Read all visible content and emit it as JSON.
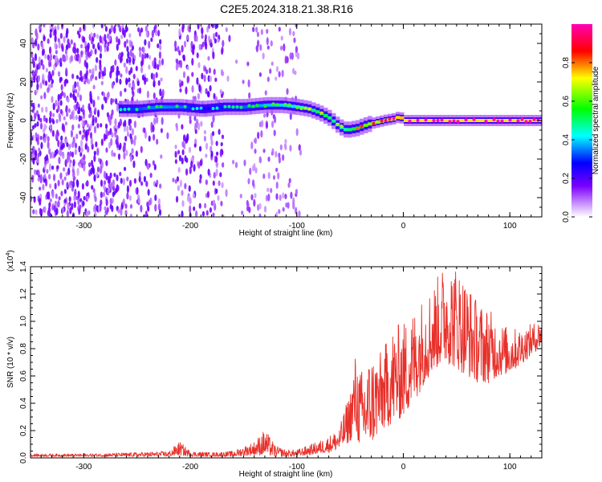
{
  "title": "C2E5.2024.318.21.38.R16",
  "chart_data": [
    {
      "type": "heatmap",
      "xlabel": "Height of straight line (km)",
      "ylabel": "Frequency (Hz)",
      "xlim": [
        -350,
        130
      ],
      "ylim": [
        -50,
        50
      ],
      "xticks": [
        -300,
        -200,
        -100,
        0,
        100
      ],
      "yticks": [
        -40,
        -20,
        0,
        20,
        40
      ],
      "colorbar": {
        "label": "Normalized spectral amplitude",
        "range": [
          0.0,
          1.0
        ],
        "ticks": [
          "0.0",
          "0.2",
          "0.4",
          "0.6",
          "0.8"
        ],
        "colors": [
          "#ffffff",
          "#7a00ff",
          "#0000ff",
          "#00ffff",
          "#00ff00",
          "#ffff00",
          "#ff0000",
          "#ff00ff"
        ]
      },
      "signal_track": {
        "x": [
          -270,
          -250,
          -230,
          -210,
          -190,
          -170,
          -150,
          -130,
          -115,
          -100,
          -90,
          -80,
          -70,
          -62,
          -55,
          -45,
          -35,
          -20,
          -10,
          -5,
          0,
          20,
          50,
          80,
          110,
          130
        ],
        "y": [
          6,
          6,
          7,
          7,
          6,
          7,
          7,
          8,
          8,
          7,
          6,
          4,
          1,
          -3,
          -5,
          -4,
          -2,
          0,
          1,
          2,
          0,
          0,
          0,
          0,
          0,
          0
        ],
        "amplitude": [
          0.35,
          0.4,
          0.45,
          0.42,
          0.3,
          0.38,
          0.42,
          0.48,
          0.5,
          0.52,
          0.6,
          0.65,
          0.62,
          0.55,
          0.6,
          0.7,
          0.8,
          0.85,
          0.9,
          0.95,
          0.92,
          0.92,
          0.92,
          0.92,
          0.92,
          0.92
        ]
      }
    },
    {
      "type": "line",
      "xlabel": "Height of straight line (km)",
      "ylabel": "SNR (10 * v/v)",
      "yscale_label": "(x10",
      "yscale_exp": "4",
      "xlim": [
        -350,
        130
      ],
      "ylim": [
        0.0,
        1.4
      ],
      "xticks": [
        -300,
        -200,
        -100,
        0,
        100
      ],
      "yticks": [
        "0.0",
        "0.2",
        "0.4",
        "0.6",
        "0.8",
        "1.0",
        "1.2",
        "1.4"
      ],
      "color": "#e8302a",
      "envelope": {
        "x": [
          -350,
          -300,
          -250,
          -220,
          -210,
          -200,
          -180,
          -160,
          -140,
          -130,
          -120,
          -110,
          -100,
          -90,
          -80,
          -70,
          -60,
          -50,
          -45,
          -40,
          -30,
          -20,
          -10,
          0,
          10,
          20,
          30,
          40,
          50,
          60,
          70,
          80,
          90,
          100,
          110,
          120,
          130
        ],
        "low": [
          0.01,
          0.01,
          0.01,
          0.01,
          0.02,
          0.01,
          0.01,
          0.01,
          0.02,
          0.02,
          0.01,
          0.01,
          0.01,
          0.02,
          0.03,
          0.04,
          0.06,
          0.12,
          0.18,
          0.05,
          0.1,
          0.2,
          0.25,
          0.3,
          0.4,
          0.55,
          0.65,
          0.7,
          0.65,
          0.6,
          0.55,
          0.55,
          0.6,
          0.62,
          0.68,
          0.75,
          0.82
        ],
        "high": [
          0.03,
          0.03,
          0.04,
          0.05,
          0.12,
          0.05,
          0.04,
          0.05,
          0.12,
          0.21,
          0.09,
          0.06,
          0.06,
          0.09,
          0.12,
          0.16,
          0.22,
          0.5,
          0.77,
          0.64,
          0.77,
          0.78,
          0.97,
          1.0,
          1.1,
          1.2,
          1.3,
          1.45,
          1.42,
          1.3,
          1.15,
          1.1,
          1.0,
          0.95,
          0.95,
          0.98,
          1.02
        ]
      }
    }
  ]
}
